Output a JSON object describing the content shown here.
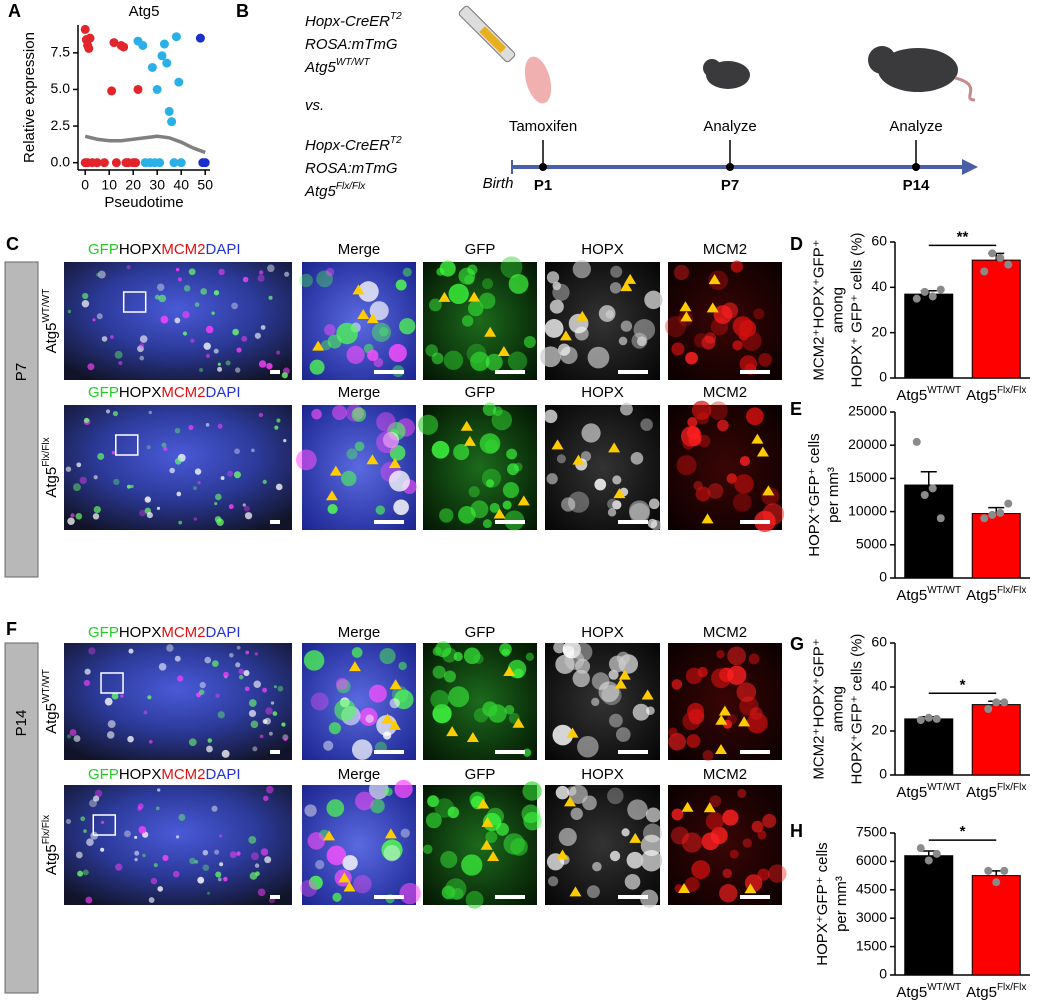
{
  "panel_labels": [
    "A",
    "B",
    "C",
    "D",
    "E",
    "F",
    "G",
    "H"
  ],
  "schematic": {
    "genotype_blocks": [
      [
        {
          "base": "Hopx-CreER",
          "sup": "T2"
        },
        {
          "base": "ROSA:mTmG"
        },
        {
          "base": "Atg5",
          "sup": "WT/WT"
        }
      ],
      [
        {
          "base": "Hopx-CreER",
          "sup": "T2"
        },
        {
          "base": "ROSA:mTmG"
        },
        {
          "base": "Atg5",
          "sup": "Flx/Flx"
        }
      ]
    ],
    "vs": "vs.",
    "events": [
      "Tamoxifen",
      "Analyze",
      "Analyze"
    ],
    "timepoints": [
      "P1",
      "P7",
      "P14"
    ],
    "start": "Birth"
  },
  "micrographs": {
    "stains": [
      {
        "text": "GFP",
        "color": "#22cc22"
      },
      {
        "text": "HOPX",
        "color": "#000000"
      },
      {
        "text": "MCM2",
        "color": "#e01010"
      },
      {
        "text": "DAPI",
        "color": "#2233dd"
      }
    ],
    "columns": [
      {
        "text": "Merge",
        "color": "#000000"
      },
      {
        "text": "GFP",
        "color": "#22cc22"
      },
      {
        "text": "HOPX",
        "color": "#000000"
      },
      {
        "text": "MCM2",
        "color": "#e01010"
      }
    ],
    "ages": [
      "P7",
      "P14"
    ],
    "genotypes": [
      {
        "base": "Atg5",
        "sup": "WT/WT"
      },
      {
        "base": "Atg5",
        "sup": "Flx/Flx"
      }
    ]
  },
  "chart_data": [
    {
      "type": "scatter",
      "title": "Atg5",
      "xlabel": "Pseudotime",
      "ylabel": "Relative expression",
      "xlim": [
        -3,
        52
      ],
      "ylim": [
        -0.5,
        9.4
      ],
      "xticks": [
        0,
        10,
        20,
        30,
        40,
        50
      ],
      "yticks": [
        {
          "value": 0,
          "label": "0.0"
        },
        {
          "value": 2.5,
          "label": "2.5"
        },
        {
          "value": 5,
          "label": "5.0"
        },
        {
          "value": 7.5,
          "label": "7.5"
        }
      ],
      "series": [
        {
          "color": "#e3242b",
          "x": [
            0,
            0.5,
            1,
            1.5,
            2,
            0,
            1,
            3,
            5,
            8,
            11,
            12,
            13,
            15,
            16,
            17,
            18,
            20,
            22,
            21
          ],
          "values": [
            9.1,
            8.4,
            8.0,
            7.8,
            8.5,
            0,
            0,
            0,
            0,
            0,
            4.9,
            8.2,
            0,
            8.0,
            7.9,
            0,
            0,
            0,
            5.0,
            0
          ]
        },
        {
          "color": "#2ab0e6",
          "x": [
            22,
            24,
            27,
            28,
            30,
            32,
            33,
            34,
            35,
            36,
            38,
            39,
            25,
            29,
            31,
            37,
            40
          ],
          "values": [
            8.3,
            8.0,
            0,
            6.5,
            5.0,
            7.3,
            8.1,
            6.8,
            3.5,
            2.8,
            8.6,
            5.5,
            0,
            0,
            0,
            0,
            0
          ]
        },
        {
          "color": "#1a2fd0",
          "x": [
            48,
            49,
            50
          ],
          "values": [
            8.5,
            0,
            0
          ]
        },
        {
          "color": "#808080",
          "style": "line",
          "x": [
            0,
            5,
            10,
            15,
            20,
            25,
            30,
            35,
            40,
            45,
            50
          ],
          "values": [
            1.8,
            1.6,
            1.5,
            1.5,
            1.6,
            1.7,
            1.8,
            1.7,
            1.4,
            1.0,
            0.7
          ]
        }
      ]
    },
    {
      "type": "bar",
      "ylabel": [
        "MCM2⁺HOPX⁺GFP⁺",
        "among",
        "HOPX⁺ GFP⁺ cells (%)"
      ],
      "categories": [
        "Atg5",
        "Atg5"
      ],
      "category_superscripts": [
        "WT/WT",
        "Flx/Flx"
      ],
      "colors": [
        "#000000",
        "#ff0000"
      ],
      "values": [
        37,
        52
      ],
      "errors": [
        1.5,
        3
      ],
      "points": [
        [
          35,
          38,
          36,
          39
        ],
        [
          47,
          55,
          53,
          50
        ]
      ],
      "ylim": [
        0,
        60
      ],
      "yticks": [
        0,
        20,
        40,
        60
      ],
      "significance": "**"
    },
    {
      "type": "bar",
      "ylabel": [
        "HOPX⁺GFP⁺ cells",
        "per mm³"
      ],
      "categories": [
        "Atg5",
        "Atg5"
      ],
      "category_superscripts": [
        "WT/WT",
        "Flx/Flx"
      ],
      "colors": [
        "#000000",
        "#ff0000"
      ],
      "values": [
        14000,
        9700
      ],
      "errors": [
        2000,
        900
      ],
      "points": [
        [
          20500,
          12500,
          13500,
          9000
        ],
        [
          9000,
          9500,
          9800,
          11200
        ]
      ],
      "ylim": [
        0,
        25000
      ],
      "yticks": [
        0,
        5000,
        10000,
        15000,
        20000,
        25000
      ]
    },
    {
      "type": "bar",
      "ylabel": [
        "MCM2⁺HOPX⁺GFP⁺",
        "among",
        "HOPX⁺GFP⁺ cells (%)"
      ],
      "categories": [
        "Atg5",
        "Atg5"
      ],
      "category_superscripts": [
        "WT/WT",
        "Flx/Flx"
      ],
      "colors": [
        "#000000",
        "#ff0000"
      ],
      "values": [
        25.5,
        32
      ],
      "errors": [
        1,
        1.5
      ],
      "points": [
        [
          25,
          26,
          25.5
        ],
        [
          30,
          33,
          33
        ]
      ],
      "ylim": [
        0,
        60
      ],
      "yticks": [
        0,
        20,
        40,
        60
      ],
      "significance": "*"
    },
    {
      "type": "bar",
      "ylabel": [
        "HOPX⁺GFP⁺ cells",
        "per mm³"
      ],
      "categories": [
        "Atg5",
        "Atg5"
      ],
      "category_superscripts": [
        "WT/WT",
        "Flx/Flx"
      ],
      "colors": [
        "#000000",
        "#ff0000"
      ],
      "values": [
        6300,
        5250
      ],
      "errors": [
        250,
        250
      ],
      "points": [
        [
          6700,
          6050,
          6400
        ],
        [
          5500,
          4900,
          5500
        ]
      ],
      "ylim": [
        0,
        7500
      ],
      "yticks": [
        0,
        1500,
        3000,
        4500,
        6000,
        7500
      ],
      "significance": "*"
    }
  ]
}
